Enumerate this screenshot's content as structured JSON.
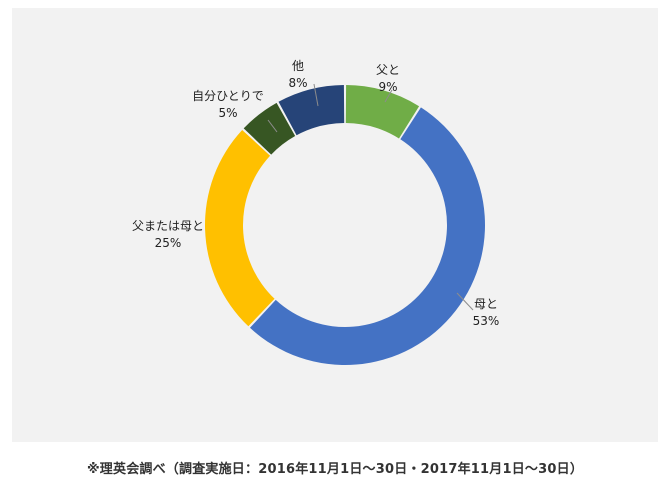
{
  "chart_data": {
    "type": "pie",
    "variant": "donut",
    "title": "",
    "slices": [
      {
        "label": "父と",
        "value": 9,
        "value_label": "9%",
        "color": "#70ad47"
      },
      {
        "label": "母と",
        "value": 53,
        "value_label": "53%",
        "color": "#4472c4"
      },
      {
        "label": "父または母と",
        "value": 25,
        "value_label": "25%",
        "color": "#ffc000"
      },
      {
        "label": "自分ひとりで",
        "value": 5,
        "value_label": "5%",
        "color": "#375623"
      },
      {
        "label": "他",
        "value": 8,
        "value_label": "8%",
        "color": "#264478"
      }
    ],
    "start_angle_deg": 0,
    "direction": "clockwise",
    "legend": "none",
    "background": "#f2f2f2"
  },
  "footer": {
    "source_note": "※理英会調べ（調査実施日：2016年11月1日～30日・2017年11月1日～30日）"
  }
}
